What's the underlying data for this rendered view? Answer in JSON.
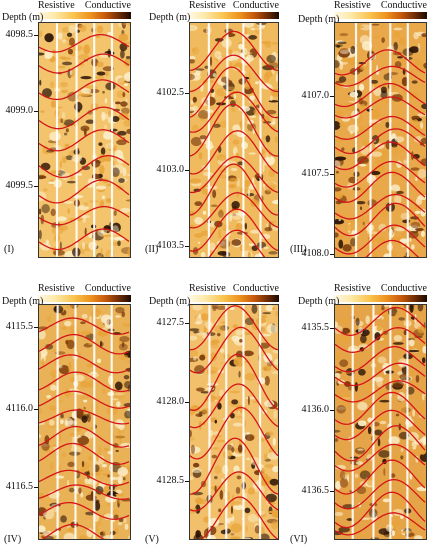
{
  "legend": {
    "resistive": "Resistive",
    "conductive": "Conductive"
  },
  "axis_title": "Depth (m)",
  "panels": [
    {
      "label": "(I)",
      "ticks": [
        "4098.5",
        "4099.0",
        "4099.5"
      ]
    },
    {
      "label": "(II)",
      "ticks": [
        "4102.5",
        "4103.0",
        "4103.5"
      ]
    },
    {
      "label": "(III)",
      "ticks": [
        "4107.0",
        "4107.5",
        "4108.0"
      ]
    },
    {
      "label": "(IV)",
      "ticks": [
        "4115.5",
        "4116.0",
        "4116.5"
      ]
    },
    {
      "label": "(V)",
      "ticks": [
        "4127.5",
        "4128.0",
        "4128.5"
      ]
    },
    {
      "label": "(VI)",
      "ticks": [
        "4135.5",
        "4136.0",
        "4136.5"
      ]
    }
  ],
  "colors": {
    "light": "#fbeec8",
    "mid": "#e8a43a",
    "dark": "#7a3a0c",
    "darkest": "#2a1205",
    "sinusoid": "#d4141a",
    "stripe": "#ffffff"
  }
}
